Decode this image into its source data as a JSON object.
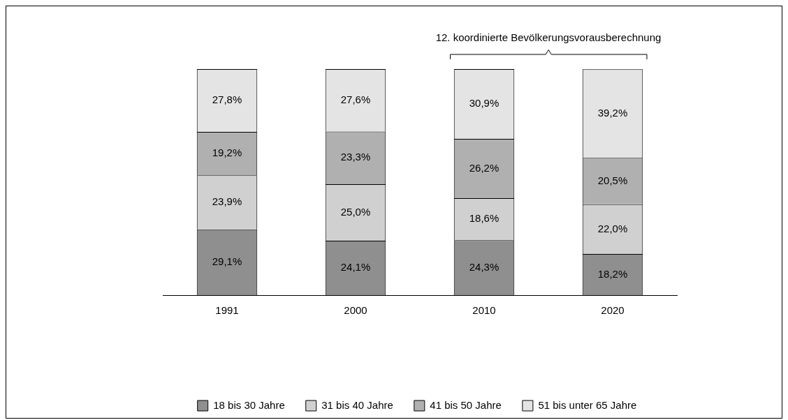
{
  "chart_data": {
    "type": "bar",
    "stacked": true,
    "categories": [
      "1991",
      "2000",
      "2010",
      "2020"
    ],
    "ylim": [
      0,
      100
    ],
    "tick_labels": "x",
    "grid": false,
    "legend": "bottom",
    "annotations": [
      "12. koordinierte Bevölkerungsvorausberechnung"
    ],
    "series": [
      {
        "name": "18 bis 30 Jahre",
        "color": "#8f8f8f",
        "values": [
          29.1,
          24.1,
          24.3,
          18.2
        ],
        "value_labels": [
          "29,1%",
          "24,1%",
          "24,3%",
          "18,2%"
        ]
      },
      {
        "name": "31 bis 40 Jahre",
        "color": "#d0d0d0",
        "values": [
          23.9,
          25.0,
          18.6,
          22.0
        ],
        "value_labels": [
          "23,9%",
          "25,0%",
          "18,6%",
          "22,0%"
        ]
      },
      {
        "name": "41 bis 50 Jahre",
        "color": "#b0b0b0",
        "values": [
          19.2,
          23.3,
          26.2,
          20.5
        ],
        "value_labels": [
          "19,2%",
          "23,3%",
          "26,2%",
          "20,5%"
        ]
      },
      {
        "name": "51 bis unter 65 Jahre",
        "color": "#e4e4e4",
        "values": [
          27.8,
          27.6,
          30.9,
          39.2
        ],
        "value_labels": [
          "27,8%",
          "27,6%",
          "30,9%",
          "39,2%"
        ]
      }
    ]
  }
}
